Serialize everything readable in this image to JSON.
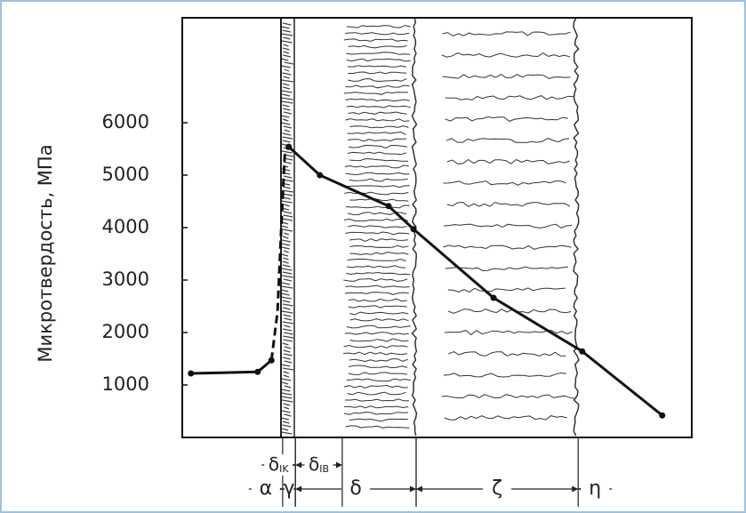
{
  "chart_data": {
    "type": "line",
    "ylabel": "Микротвердость, МПа",
    "xlim": [
      0,
      100
    ],
    "ylim": [
      0,
      8000
    ],
    "yticks": [
      1000,
      2000,
      3000,
      4000,
      5000,
      6000
    ],
    "series": [
      {
        "color": "#111111",
        "dash": false,
        "dots": true,
        "x": [
          1.7,
          14.8,
          17.5
        ],
        "values": [
          1220,
          1250,
          1470
        ]
      },
      {
        "color": "#111111",
        "dash": true,
        "dots": false,
        "x": [
          17.5,
          18.7,
          19.4,
          20.1,
          20.9
        ],
        "values": [
          1470,
          2400,
          3930,
          5370,
          5540
        ]
      },
      {
        "color": "#111111",
        "dash": false,
        "dots": true,
        "x": [
          20.9,
          27,
          40.5,
          45.4,
          61.1,
          78.5,
          94.2
        ],
        "values": [
          5540,
          5000,
          4410,
          3970,
          2660,
          1640,
          420
        ]
      }
    ],
    "zones": {
      "boundaries": [
        19.7,
        22.2,
        45.9,
        77.7
      ],
      "labels": [
        "α",
        "γ",
        "δ",
        "ζ",
        "η"
      ]
    },
    "subzones": {
      "boundaries": [
        22.2,
        31.4,
        45.9
      ],
      "labels": [
        {
          "text": "δ",
          "sub": "IK"
        },
        {
          "text": "δ",
          "sub": "IB"
        }
      ]
    }
  }
}
